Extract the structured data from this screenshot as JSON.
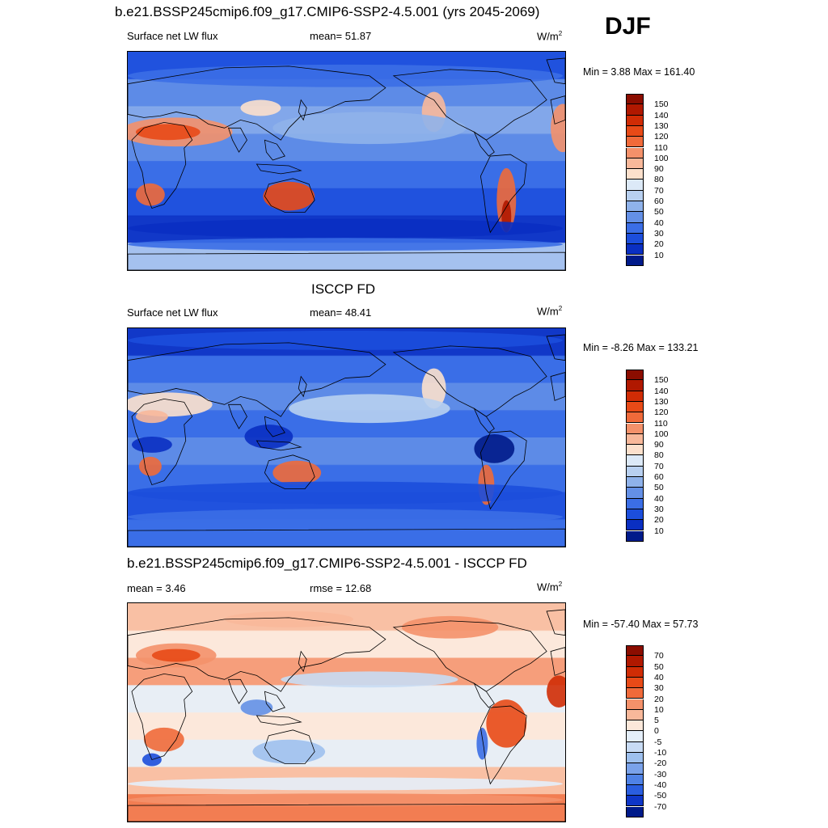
{
  "header": {
    "title": "b.e21.BSSP245cmip6.f09_g17.CMIP6-SSP2-4.5.001 (yrs 2045-2069)",
    "season": "DJF"
  },
  "panels": [
    {
      "id": "model",
      "title": "",
      "left_label": "Surface net LW flux",
      "center_label": "mean=  51.87",
      "units": "W/m",
      "units_exp": "2",
      "minmax": "Min =   3.88 Max = 161.40",
      "levels": [
        "150",
        "140",
        "130",
        "120",
        "110",
        "100",
        "90",
        "80",
        "70",
        "60",
        "50",
        "40",
        "30",
        "20",
        "10"
      ],
      "colors": [
        "#8b0d00",
        "#b01800",
        "#d02c05",
        "#e84a17",
        "#f06a3a",
        "#f4916a",
        "#f8b89a",
        "#fce0cc",
        "#dce9f7",
        "#b8d0f0",
        "#8fb2ea",
        "#6490e6",
        "#3b6ee6",
        "#1c4edc",
        "#0a2fc2",
        "#001a8a"
      ],
      "palette_idx": [
        13,
        13,
        12,
        12,
        13,
        13,
        11,
        10,
        9,
        8,
        7,
        11,
        12,
        13,
        12,
        11
      ]
    },
    {
      "id": "obs",
      "title": "ISCCP FD",
      "left_label": "Surface net LW flux",
      "center_label": "mean=  48.41",
      "units": "W/m",
      "units_exp": "2",
      "minmax": "Min =  -8.26 Max = 133.21",
      "levels": [
        "150",
        "140",
        "130",
        "120",
        "110",
        "100",
        "90",
        "80",
        "70",
        "60",
        "50",
        "40",
        "30",
        "20",
        "10"
      ],
      "colors": [
        "#8b0d00",
        "#b01800",
        "#d02c05",
        "#e84a17",
        "#f06a3a",
        "#f4916a",
        "#f8b89a",
        "#fce0cc",
        "#dce9f7",
        "#b8d0f0",
        "#8fb2ea",
        "#6490e6",
        "#3b6ee6",
        "#1c4edc",
        "#0a2fc2",
        "#001a8a"
      ]
    },
    {
      "id": "diff",
      "title": "b.e21.BSSP245cmip6.f09_g17.CMIP6-SSP2-4.5.001 - ISCCP FD",
      "left_label": "mean =   3.46",
      "center_label": "rmse =  12.68",
      "units": "W/m",
      "units_exp": "2",
      "minmax": "Min = -57.40 Max =  57.73",
      "levels": [
        "70",
        "50",
        "40",
        "30",
        "20",
        "10",
        "5",
        "0",
        "-5",
        "-10",
        "-20",
        "-30",
        "-40",
        "-50",
        "-70"
      ],
      "colors": [
        "#8b0d00",
        "#b01800",
        "#d02c05",
        "#e84a17",
        "#f06a3a",
        "#f4916a",
        "#f8b89a",
        "#fce8da",
        "#e4eef9",
        "#c8dbf4",
        "#9ec0ee",
        "#7aa2ea",
        "#4f82e6",
        "#2a5ee0",
        "#0e36c8",
        "#001a8a"
      ]
    }
  ]
}
